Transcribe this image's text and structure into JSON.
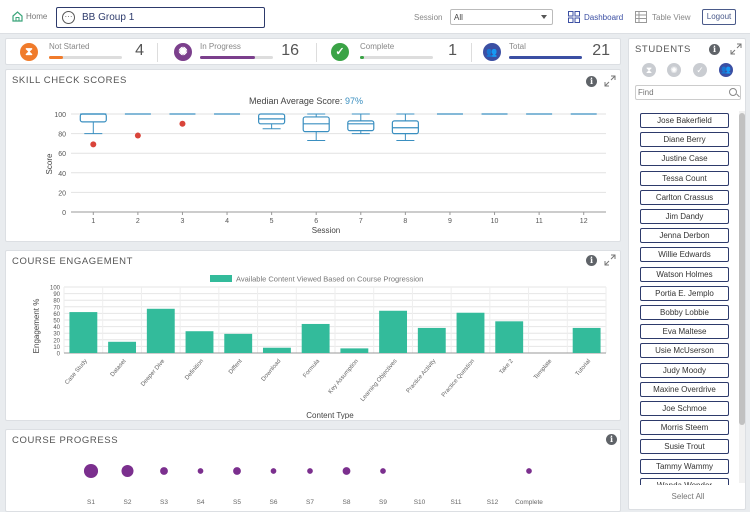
{
  "header": {
    "home_label": "Home",
    "group_name": "BB Group 1",
    "session_label": "Session",
    "session_value": "All",
    "dashboard_label": "Dashboard",
    "table_view_label": "Table View",
    "logout_label": "Logout"
  },
  "status": {
    "not_started": {
      "label": "Not Started",
      "count": "4",
      "fraction": 0.19,
      "color": "#f07b2b"
    },
    "in_progress": {
      "label": "In Progress",
      "count": "16",
      "fraction": 0.76,
      "color": "#7b3f8c"
    },
    "complete": {
      "label": "Complete",
      "count": "1",
      "fraction": 0.05,
      "color": "#3aa346"
    },
    "total": {
      "label": "Total",
      "count": "21",
      "fraction": 1.0,
      "color": "#3b4fa3"
    }
  },
  "skill_check": {
    "title": "SKILL CHECK SCORES",
    "chart_data": {
      "type": "box",
      "subtitle_prefix": "Median Average Score: ",
      "subtitle_value": "97%",
      "xlabel": "Session",
      "ylabel": "Score",
      "ylim": [
        0,
        100
      ],
      "yticks": [
        "0",
        "20",
        "40",
        "60",
        "80",
        "100"
      ],
      "categories": [
        "1",
        "2",
        "3",
        "4",
        "5",
        "6",
        "7",
        "8",
        "9",
        "10",
        "11",
        "12"
      ],
      "boxes": [
        {
          "min": 80,
          "q1": 92,
          "median": 100,
          "q3": 100,
          "max": 100
        },
        {
          "min": 100,
          "q1": 100,
          "median": 100,
          "q3": 100,
          "max": 100
        },
        {
          "min": 100,
          "q1": 100,
          "median": 100,
          "q3": 100,
          "max": 100
        },
        {
          "min": 100,
          "q1": 100,
          "median": 100,
          "q3": 100,
          "max": 100
        },
        {
          "min": 85,
          "q1": 90,
          "median": 95,
          "q3": 100,
          "max": 100
        },
        {
          "min": 73,
          "q1": 82,
          "median": 90,
          "q3": 97,
          "max": 100
        },
        {
          "min": 80,
          "q1": 83,
          "median": 90,
          "q3": 93,
          "max": 100
        },
        {
          "min": 73,
          "q1": 80,
          "median": 86,
          "q3": 93,
          "max": 100
        },
        {
          "min": 100,
          "q1": 100,
          "median": 100,
          "q3": 100,
          "max": 100
        },
        {
          "min": 100,
          "q1": 100,
          "median": 100,
          "q3": 100,
          "max": 100
        },
        {
          "min": 100,
          "q1": 100,
          "median": 100,
          "q3": 100,
          "max": 100
        },
        {
          "min": 100,
          "q1": 100,
          "median": 100,
          "q3": 100,
          "max": 100
        }
      ],
      "outliers": [
        {
          "session": "1",
          "score": 69
        },
        {
          "session": "2",
          "score": 78
        },
        {
          "session": "3",
          "score": 90
        }
      ],
      "box_color": "#3a8fc0",
      "outlier_color": "#d9443a"
    }
  },
  "engagement": {
    "title": "COURSE ENGAGEMENT",
    "chart_data": {
      "type": "bar",
      "legend": "Available Content Viewed Based on Course Progression",
      "xlabel": "Content Type",
      "ylabel": "Engagement %",
      "ylim": [
        0,
        100
      ],
      "yticks": [
        "0",
        "10",
        "20",
        "30",
        "40",
        "50",
        "60",
        "70",
        "80",
        "90",
        "100"
      ],
      "categories": [
        "Case Study",
        "Dataset",
        "Deeper Dive",
        "Definition",
        "Diffent",
        "Download",
        "Formula",
        "Key Assumption",
        "Learning Objectives",
        "Practice Activity",
        "Practice Question",
        "Take 2",
        "Template",
        "Tutorial"
      ],
      "values": [
        62,
        17,
        67,
        33,
        29,
        8,
        44,
        7,
        64,
        38,
        61,
        48,
        0,
        38
      ],
      "color": "#33bb9b"
    }
  },
  "progress": {
    "title": "COURSE PROGRESS",
    "chart_data": {
      "type": "scatter",
      "categories": [
        "S1",
        "S2",
        "S3",
        "S4",
        "S5",
        "S6",
        "S7",
        "S8",
        "S9",
        "S10",
        "S11",
        "S12",
        "Complete"
      ],
      "counts": [
        5,
        4,
        2,
        1,
        2,
        1,
        1,
        2,
        1,
        0,
        0,
        0,
        1
      ],
      "color": "#7b2f8e"
    }
  },
  "students": {
    "title": "STUDENTS",
    "find_placeholder": "Find",
    "select_all_label": "Select All",
    "names": [
      "Jose Bakerfield",
      "Diane Berry",
      "Justine Case",
      "Tessa Count",
      "Carlton Crassus",
      "Jim Dandy",
      "Jenna Derbon",
      "Willie Edwards",
      "Watson Holmes",
      "Portia E. Jemplo",
      "Bobby Lobbie",
      "Eva Maltese",
      "Usie McUserson",
      "Judy Moody",
      "Maxine Overdrive",
      "Joe Schmoe",
      "Morris Steem",
      "Susie Trout",
      "Tammy Wammy",
      "Wanda Wonder"
    ]
  }
}
